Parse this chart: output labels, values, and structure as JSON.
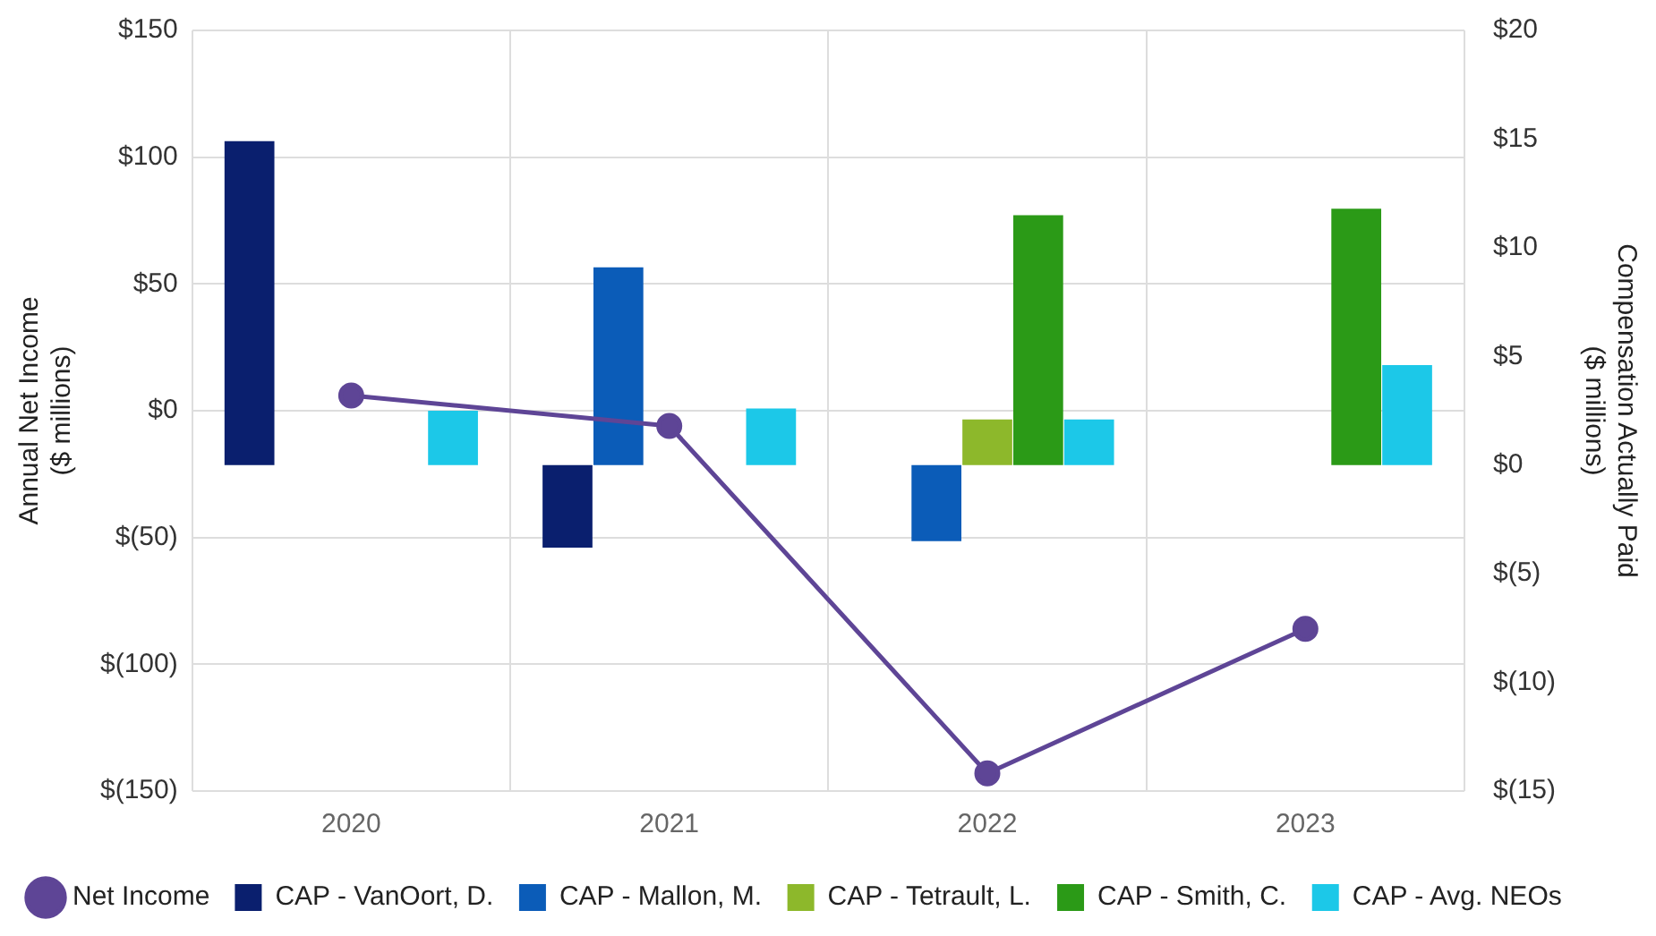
{
  "chart_data": {
    "type": "bar",
    "categories": [
      "2020",
      "2021",
      "2022",
      "2023"
    ],
    "ylabel": "Annual Net Income\n($ millions)",
    "y2label": "Compensation Actually Paid\n($ millions)",
    "series": [
      {
        "name": "CAP - VanOort, D.",
        "color": "#0a1f6e",
        "axis": "y2",
        "values": [
          14.9,
          -3.8,
          null,
          null
        ]
      },
      {
        "name": "CAP - Mallon, M.",
        "color": "#0b5cb8",
        "axis": "y2",
        "values": [
          null,
          9.1,
          -3.5,
          null
        ]
      },
      {
        "name": "CAP - Tetrault, L.",
        "color": "#8db82b",
        "axis": "y2",
        "values": [
          null,
          null,
          2.1,
          null
        ]
      },
      {
        "name": "CAP - Smith, C.",
        "color": "#2b9a17",
        "axis": "y2",
        "values": [
          null,
          null,
          11.5,
          11.8
        ]
      },
      {
        "name": "CAP - Avg. NEOs",
        "color": "#1cc8e8",
        "axis": "y2",
        "values": [
          2.5,
          2.6,
          2.1,
          4.6
        ]
      },
      {
        "name": "Net Income",
        "type": "line",
        "color": "#5e4596",
        "axis": "y",
        "values": [
          6,
          -6,
          -143,
          -86
        ]
      }
    ],
    "ylim": [
      -150,
      150
    ],
    "yticks": [
      {
        "value": -150,
        "label": "$(150)"
      },
      {
        "value": -100,
        "label": "$(100)"
      },
      {
        "value": -50,
        "label": "$(50)"
      },
      {
        "value": 0,
        "label": "$0"
      },
      {
        "value": 50,
        "label": "$50"
      },
      {
        "value": 100,
        "label": "$100"
      },
      {
        "value": 150,
        "label": "$150"
      }
    ],
    "y2lim": [
      -15,
      20
    ],
    "y2ticks": [
      {
        "value": -15,
        "label": "$(15)"
      },
      {
        "value": -10,
        "label": "$(10)"
      },
      {
        "value": -5,
        "label": "$(5)"
      },
      {
        "value": 0,
        "label": "$0"
      },
      {
        "value": 5,
        "label": "$5"
      },
      {
        "value": 10,
        "label": "$10"
      },
      {
        "value": 15,
        "label": "$15"
      },
      {
        "value": 20,
        "label": "$20"
      }
    ],
    "grid": true,
    "legend": "bottom",
    "marker": "circle"
  }
}
